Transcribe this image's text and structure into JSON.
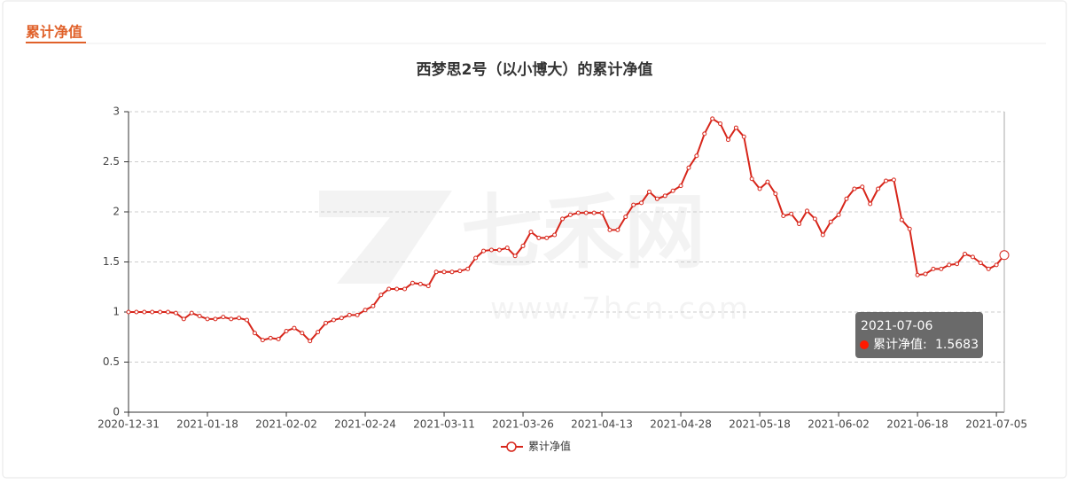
{
  "header": {
    "title": "累计净值"
  },
  "chart_data": {
    "type": "line",
    "title": "西梦思2号（以小博大）的累计净值",
    "watermark": [
      "七禾网",
      "www.7hcn.com"
    ],
    "categories": [
      "2020-12-31",
      null,
      null,
      null,
      null,
      null,
      null,
      null,
      null,
      null,
      "2021-01-18",
      null,
      null,
      null,
      null,
      null,
      null,
      null,
      null,
      null,
      "2021-02-02",
      null,
      null,
      null,
      null,
      null,
      null,
      null,
      null,
      null,
      "2021-02-24",
      null,
      null,
      null,
      null,
      null,
      null,
      null,
      null,
      null,
      "2021-03-11",
      null,
      null,
      null,
      null,
      null,
      null,
      null,
      null,
      null,
      "2021-03-26",
      null,
      null,
      null,
      null,
      null,
      null,
      null,
      null,
      null,
      "2021-04-13",
      null,
      null,
      null,
      null,
      null,
      null,
      null,
      null,
      null,
      "2021-04-28",
      null,
      null,
      null,
      null,
      null,
      null,
      null,
      null,
      null,
      "2021-05-18",
      null,
      null,
      null,
      null,
      null,
      null,
      null,
      null,
      null,
      "2021-06-02",
      null,
      null,
      null,
      null,
      null,
      null,
      null,
      null,
      null,
      "2021-06-18",
      null,
      null,
      null,
      null,
      null,
      null,
      null,
      null,
      null,
      "2021-07-05",
      null
    ],
    "series": [
      {
        "name": "累计净值",
        "color": "#d7261b",
        "values": [
          1.0,
          1.0,
          1.0,
          1.0,
          1.0,
          1.0,
          0.99,
          0.93,
          0.99,
          0.96,
          0.93,
          0.93,
          0.95,
          0.93,
          0.94,
          0.92,
          0.79,
          0.72,
          0.74,
          0.73,
          0.81,
          0.84,
          0.79,
          0.71,
          0.8,
          0.89,
          0.92,
          0.94,
          0.97,
          0.97,
          1.02,
          1.06,
          1.17,
          1.23,
          1.23,
          1.23,
          1.29,
          1.28,
          1.26,
          1.4,
          1.4,
          1.4,
          1.41,
          1.43,
          1.54,
          1.61,
          1.62,
          1.62,
          1.64,
          1.56,
          1.66,
          1.8,
          1.74,
          1.74,
          1.77,
          1.93,
          1.97,
          1.99,
          1.99,
          1.99,
          1.99,
          1.82,
          1.82,
          1.95,
          2.07,
          2.09,
          2.2,
          2.13,
          2.16,
          2.21,
          2.26,
          2.44,
          2.56,
          2.78,
          2.93,
          2.88,
          2.72,
          2.84,
          2.75,
          2.33,
          2.23,
          2.3,
          2.18,
          1.96,
          1.98,
          1.88,
          2.01,
          1.93,
          1.77,
          1.9,
          1.97,
          2.13,
          2.23,
          2.25,
          2.08,
          2.23,
          2.31,
          2.32,
          1.92,
          1.83,
          1.37,
          1.38,
          1.43,
          1.43,
          1.47,
          1.48,
          1.58,
          1.55,
          1.49,
          1.43,
          1.47,
          1.5683
        ]
      }
    ],
    "ylim": [
      0,
      3
    ],
    "yticks": [
      0,
      0.5,
      1,
      1.5,
      2,
      2.5,
      3
    ],
    "grid": true,
    "legend": "bottom",
    "tooltip": {
      "date": "2021-07-06",
      "label": "累计净值:"
    }
  }
}
